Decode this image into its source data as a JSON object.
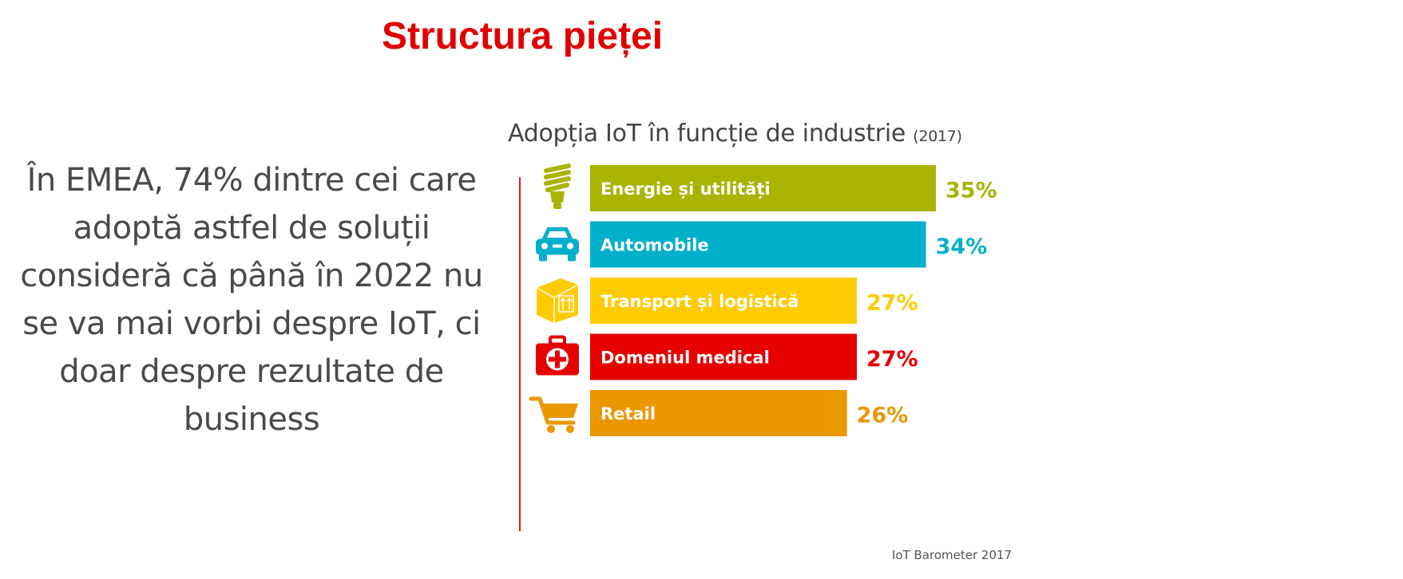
{
  "slide": {
    "title": "Structura pieței",
    "left_text": "În EMEA, 74% dintre cei care adoptă astfel de soluții consideră că până în 2022 nu se va mai vorbi despre IoT, ci doar despre rezultate de business",
    "source": "IoT Barometer 2017"
  },
  "chart_data": {
    "type": "bar",
    "orientation": "horizontal",
    "title": "Adopția IoT în funcție de industrie",
    "title_year": "(2017)",
    "categories": [
      "Energie și utilități",
      "Automobile",
      "Transport și logistică",
      "Domeniul medical",
      "Retail"
    ],
    "values": [
      35,
      34,
      27,
      27,
      26
    ],
    "value_labels": [
      "35%",
      "34%",
      "27%",
      "27%",
      "26%"
    ],
    "colors": [
      "#a8b400",
      "#00b0ca",
      "#fecb00",
      "#e60000",
      "#eb9700"
    ],
    "icons": [
      "lightbulb-icon",
      "car-icon",
      "box-icon",
      "medical-kit-icon",
      "shopping-cart-icon"
    ],
    "xlim": [
      0,
      35
    ],
    "unit": "%"
  }
}
